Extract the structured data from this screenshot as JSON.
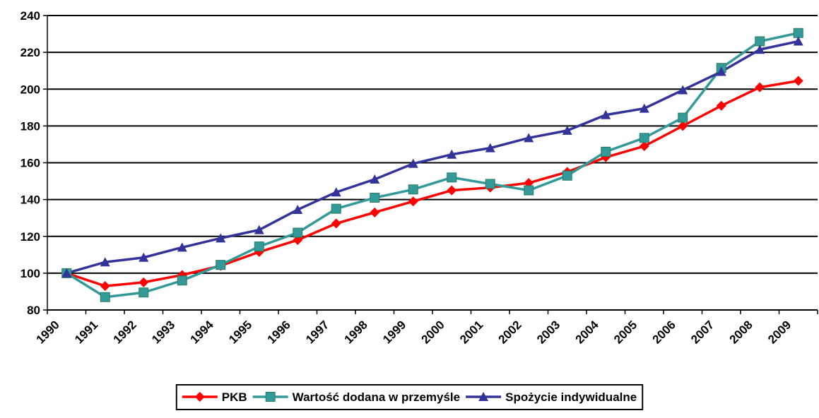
{
  "chart_data": {
    "type": "line",
    "categories": [
      "1990",
      "1991",
      "1992",
      "1993",
      "1994",
      "1995",
      "1996",
      "1997",
      "1998",
      "1999",
      "2000",
      "2001",
      "2002",
      "2003",
      "2004",
      "2005",
      "2006",
      "2007",
      "2008",
      "2009"
    ],
    "series": [
      {
        "name": "PKB",
        "color": "#ff0000",
        "marker": "diamond",
        "values": [
          100,
          93,
          95,
          99,
          104,
          111.5,
          118,
          127,
          133,
          139,
          145,
          146.5,
          149,
          155,
          163,
          169,
          180,
          191,
          201,
          204.5
        ]
      },
      {
        "name": "Wartość dodana w przemyśle",
        "color": "#339999",
        "marker": "square",
        "values": [
          100,
          87,
          89.5,
          96,
          104.5,
          114.5,
          122,
          135,
          141,
          145.5,
          152,
          148.5,
          145,
          153,
          166,
          173.5,
          184.5,
          211.5,
          226,
          230.5
        ]
      },
      {
        "name": "Spożycie indywidualne",
        "color": "#333399",
        "marker": "triangle",
        "values": [
          100,
          106,
          108.5,
          114,
          119,
          123.5,
          134.5,
          144,
          151,
          159.5,
          164.5,
          168,
          173.5,
          177.5,
          186,
          189.5,
          199.5,
          209.5,
          221.5,
          226
        ]
      }
    ],
    "ylim": [
      80,
      240
    ],
    "yticks": [
      80,
      100,
      120,
      140,
      160,
      180,
      200,
      220,
      240
    ],
    "grid": true,
    "legend": "bottom"
  }
}
